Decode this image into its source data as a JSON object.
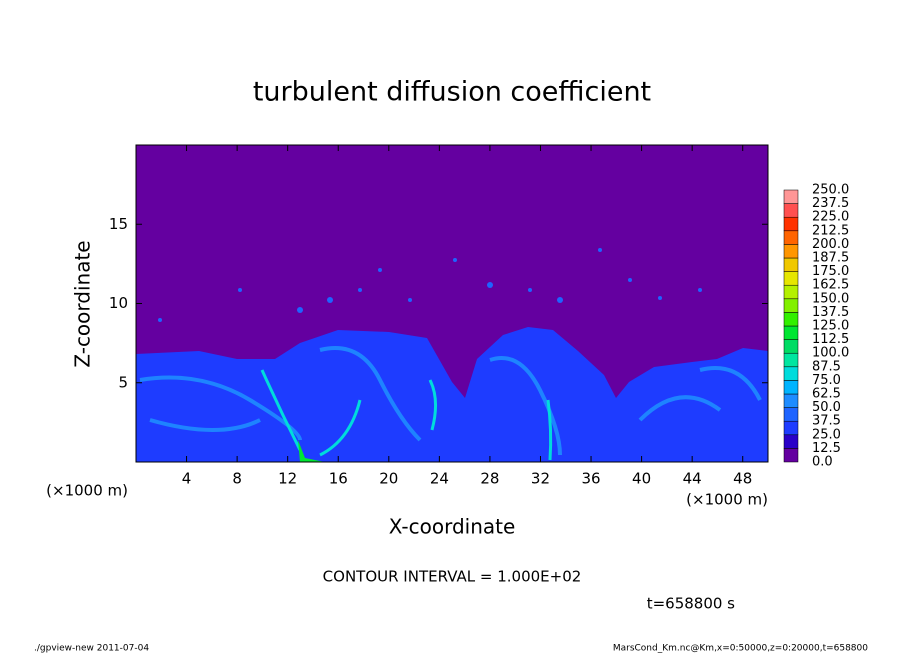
{
  "chart_data": {
    "type": "contour",
    "title": "turbulent diffusion coefficient",
    "xlabel": "X-coordinate",
    "ylabel": "Z-coordinate",
    "x_unit": "(×1000 m)",
    "y_unit": "(×1000 m)",
    "xlim": [
      0,
      50
    ],
    "xticks": [
      4,
      8,
      12,
      16,
      20,
      24,
      28,
      32,
      36,
      40,
      44,
      48
    ],
    "ylim": [
      0,
      20
    ],
    "yticks": [
      5,
      10,
      15
    ],
    "levels": [
      {
        "value": 0,
        "label": "0.0"
      },
      12.5,
      {
        "value": 25,
        "label": "25.0"
      },
      37.5,
      {
        "value": 50,
        "label": "50.0"
      },
      62.5,
      {
        "value": 75,
        "label": "75.0"
      },
      87.5,
      {
        "value": 100,
        "label": "100.0"
      },
      112.5,
      {
        "value": 125,
        "label": "125.0"
      },
      137.5,
      {
        "value": 150,
        "label": "150.0"
      },
      162.5,
      {
        "value": 175,
        "label": "175.0"
      },
      187.5,
      {
        "value": 200,
        "label": "200.0"
      },
      212.5,
      {
        "value": 225,
        "label": "225.0"
      },
      237.5,
      {
        "value": 250,
        "label": "250.0"
      }
    ],
    "colors": [
      "#6400a0",
      "#2a00c8",
      "#1e3cff",
      "#1e64ff",
      "#1e8cff",
      "#00b4ff",
      "#00dcdc",
      "#00e6a0",
      "#00dc64",
      "#00e632",
      "#32f000",
      "#82f000",
      "#b4f000",
      "#e6e600",
      "#f0c800",
      "#ff9600",
      "#ff6400",
      "#ff3200",
      "#ff5050",
      "#ff9696"
    ],
    "annotations": [
      "CONTOUR INTERVAL = 1.000E+02",
      "t=658800 s"
    ],
    "footer_left": "./gpview-new  2011-07-04",
    "footer_right": "MarsCond_Km.nc@Km,x=0:50000,z=0:20000,t=658800"
  }
}
